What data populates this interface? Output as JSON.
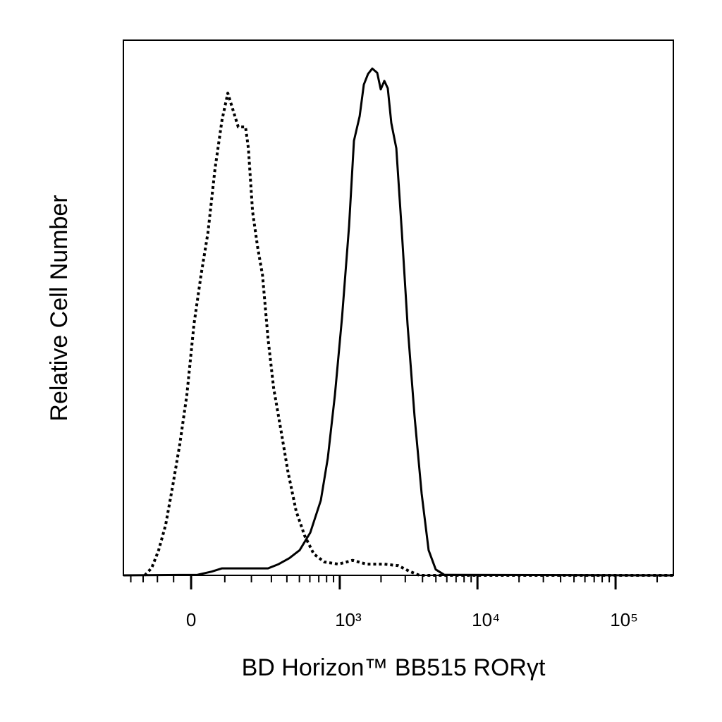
{
  "chart_data": {
    "type": "line",
    "xlabel": "BD Horizon™ BB515  RORγt",
    "ylabel": "Relative Cell Number",
    "xscale": "asinh",
    "xlim": [
      -234,
      262000
    ],
    "ylim": [
      0,
      100
    ],
    "xticks": [
      0,
      {
        "value": 1000,
        "label": "10³"
      },
      {
        "value": 10000,
        "label": "10⁴"
      },
      {
        "value": 100000,
        "label": "10⁵"
      }
    ],
    "xminorticks": [
      -200,
      -150,
      -100,
      -50,
      100,
      200,
      300,
      400,
      500,
      600,
      700,
      800,
      900,
      2000,
      3000,
      4000,
      5000,
      6000,
      7000,
      8000,
      9000,
      20000,
      30000,
      40000,
      50000,
      60000,
      70000,
      80000,
      90000,
      200000
    ],
    "series": [
      {
        "color": "#000000",
        "dash": "dotted",
        "x": [
          -144,
          -119,
          -96,
          -74,
          -53,
          -32,
          -12,
          8,
          28,
          48,
          69,
          91,
          110,
          127,
          147,
          175,
          187,
          205,
          228,
          252,
          281,
          313,
          357,
          407,
          472,
          548,
          642,
          769,
          979,
          1242,
          1572,
          2113,
          2674,
          3189,
          3800,
          5100,
          262000
        ],
        "values": [
          0,
          1.4,
          4.7,
          9.4,
          16.6,
          24.5,
          33.7,
          46.9,
          56.1,
          64.0,
          75.9,
          85.1,
          90.1,
          87.1,
          83.8,
          83.8,
          79.8,
          68.0,
          61.4,
          56.1,
          44.3,
          35.0,
          27.4,
          19.5,
          12.0,
          7.4,
          4.0,
          2.5,
          2.1,
          2.8,
          2.1,
          2.1,
          1.8,
          0.8,
          0,
          0,
          0
        ]
      },
      {
        "color": "#000000",
        "dash": "solid",
        "x": [
          -234,
          18,
          59,
          91,
          281,
          344,
          418,
          502,
          605,
          725,
          816,
          921,
          1039,
          1170,
          1271,
          1398,
          1499,
          1609,
          1727,
          1876,
          1991,
          2113,
          2239,
          2376,
          2582,
          2836,
          3116,
          3500,
          3940,
          4430,
          4990,
          5740,
          262000
        ],
        "values": [
          0,
          0.1,
          0.7,
          1.3,
          1.3,
          2.1,
          3.2,
          4.7,
          8.0,
          14.0,
          21.9,
          33.7,
          48.2,
          65.3,
          81.2,
          85.8,
          91.7,
          93.7,
          94.7,
          93.9,
          90.8,
          92.4,
          91.0,
          84.5,
          79.8,
          64.0,
          46.9,
          29.8,
          15.3,
          4.7,
          1.1,
          0.1,
          0
        ]
      }
    ]
  }
}
